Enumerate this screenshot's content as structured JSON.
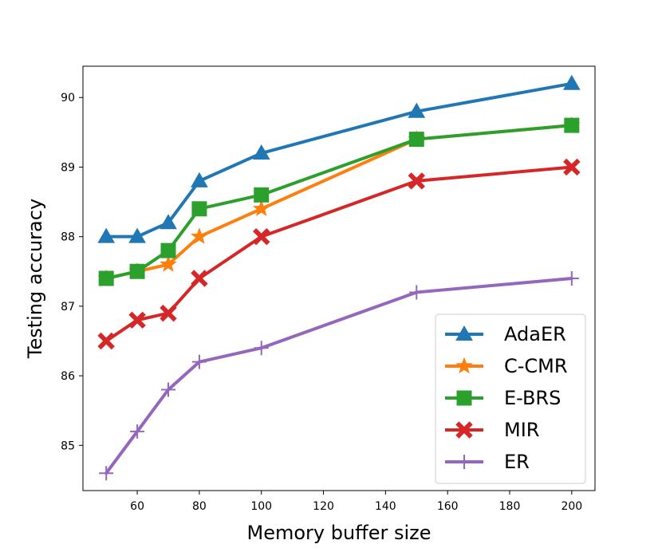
{
  "chart_data": {
    "type": "line",
    "title": "",
    "xlabel": "Memory buffer size",
    "ylabel": "Testing accuracy",
    "x": [
      50,
      60,
      70,
      80,
      100,
      150,
      200
    ],
    "xlim": [
      42.5,
      207.5
    ],
    "ylim": [
      84.35,
      90.45
    ],
    "xticks": [
      60,
      80,
      100,
      120,
      140,
      160,
      180,
      200
    ],
    "yticks": [
      85,
      86,
      87,
      88,
      89,
      90
    ],
    "grid": false,
    "legend_position": "lower-right",
    "series": [
      {
        "name": "AdaER",
        "color": "#1f77b4",
        "marker": "triangle",
        "values": [
          88.0,
          88.0,
          88.2,
          88.8,
          89.2,
          89.8,
          90.2
        ]
      },
      {
        "name": "C-CMR",
        "color": "#ff7f0e",
        "marker": "star",
        "values": [
          87.4,
          87.5,
          87.6,
          88.0,
          88.4,
          89.4,
          89.6
        ]
      },
      {
        "name": "E-BRS",
        "color": "#2ca02c",
        "marker": "square",
        "values": [
          87.4,
          87.5,
          87.8,
          88.4,
          88.6,
          89.4,
          89.6
        ]
      },
      {
        "name": "MIR",
        "color": "#d62728",
        "marker": "x",
        "values": [
          86.5,
          86.8,
          86.9,
          87.4,
          88.0,
          88.8,
          89.0
        ]
      },
      {
        "name": "ER",
        "color": "#9467bd",
        "marker": "plus",
        "values": [
          84.6,
          85.2,
          85.8,
          86.2,
          86.4,
          87.2,
          87.4
        ]
      }
    ]
  }
}
